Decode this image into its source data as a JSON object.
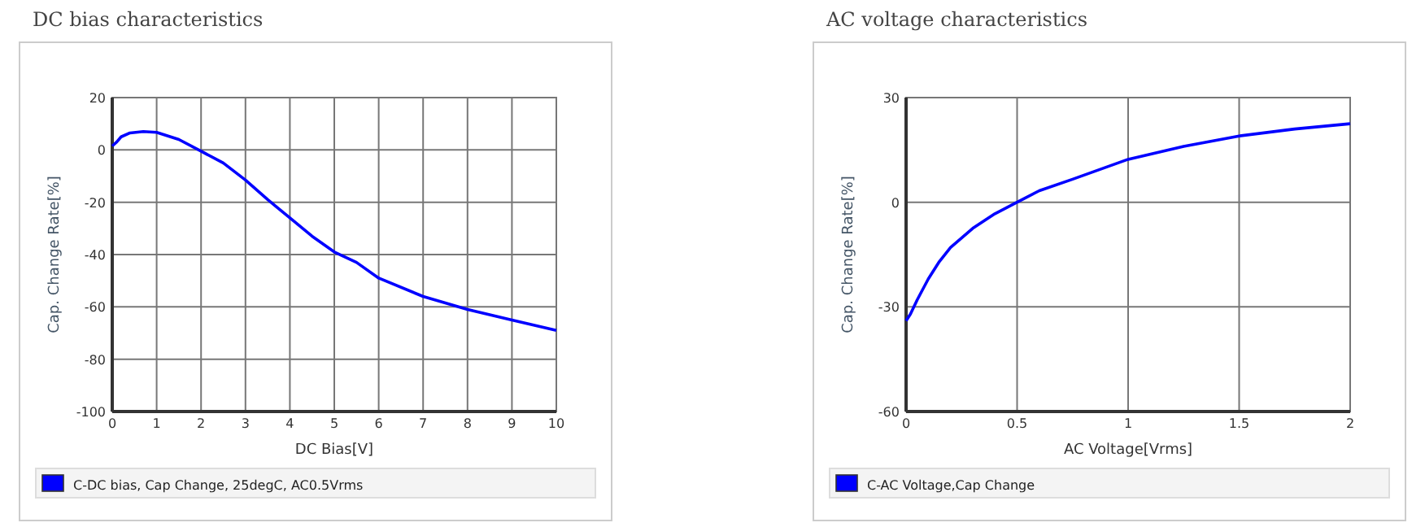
{
  "chart_data": [
    {
      "type": "line",
      "title": "DC bias characteristics",
      "xlabel": "DC Bias[V]",
      "ylabel": "Cap. Change Rate[%]",
      "xlim": [
        0,
        10
      ],
      "xticks": [
        0,
        1,
        2,
        3,
        4,
        5,
        6,
        7,
        8,
        9,
        10
      ],
      "ylim": [
        -100,
        20
      ],
      "yticks": [
        -100,
        -80,
        -60,
        -40,
        -20,
        0,
        20
      ],
      "grid": true,
      "legend": "bottom",
      "marker": "none",
      "line_style": "solid",
      "series": [
        {
          "name": "C-DC bias, Cap Change, 25degC, AC0.5Vrms",
          "color": "#0000ff",
          "x": [
            0,
            0.1,
            0.2,
            0.4,
            0.7,
            1,
            1.5,
            2,
            2.5,
            3,
            3.5,
            4,
            4.5,
            5,
            5.5,
            6,
            7,
            8,
            9,
            10
          ],
          "values": [
            1.5,
            3,
            5,
            6.5,
            7,
            6.7,
            4,
            -0.5,
            -5,
            -11.5,
            -19,
            -26,
            -33,
            -39,
            -43,
            -49,
            -56,
            -61,
            -65,
            -69
          ]
        }
      ]
    },
    {
      "type": "line",
      "title": "AC voltage characteristics",
      "xlabel": "AC Voltage[Vrms]",
      "ylabel": "Cap. Change Rate[%]",
      "xlim": [
        0,
        2
      ],
      "xticks": [
        0,
        0.5,
        1,
        1.5,
        2
      ],
      "ylim": [
        -60,
        30
      ],
      "yticks": [
        -60,
        -30,
        0,
        30
      ],
      "grid": true,
      "legend": "bottom",
      "marker": "none",
      "line_style": "solid",
      "series": [
        {
          "name": "C-AC Voltage,Cap Change",
          "color": "#0000ff",
          "x": [
            0,
            0.02,
            0.05,
            0.1,
            0.15,
            0.2,
            0.3,
            0.4,
            0.5,
            0.6,
            0.75,
            1,
            1.25,
            1.5,
            1.75,
            2
          ],
          "values": [
            -34,
            -32,
            -28,
            -22,
            -17,
            -13,
            -7.5,
            -3.3,
            0,
            3.3,
            6.6,
            12.3,
            16,
            19,
            21,
            22.5
          ]
        }
      ]
    }
  ]
}
